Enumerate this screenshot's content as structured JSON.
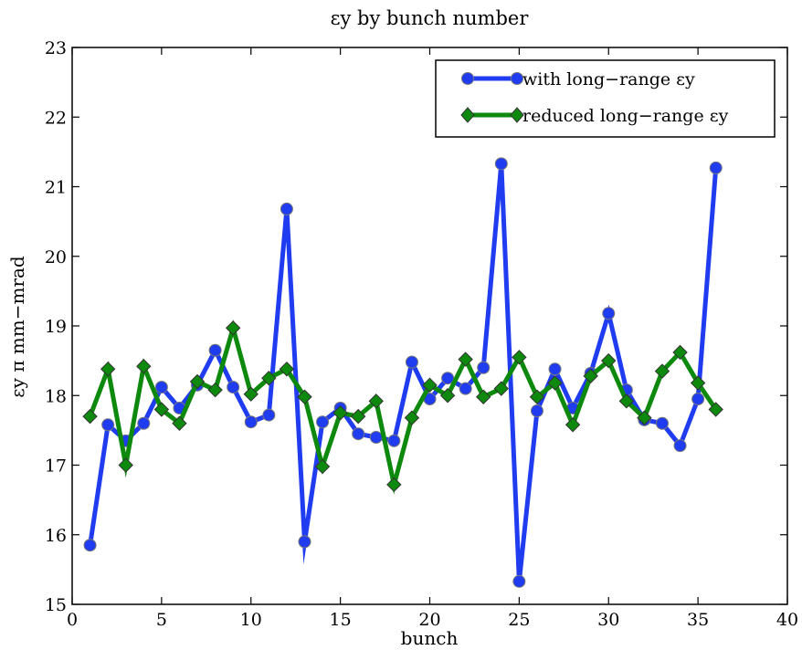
{
  "chart_data": {
    "type": "line",
    "title": "εy by bunch number",
    "xlabel": "bunch",
    "ylabel": "εy π mm−mrad",
    "xlim": [
      0,
      40
    ],
    "ylim": [
      15,
      23
    ],
    "xticks": [
      0,
      5,
      10,
      15,
      20,
      25,
      30,
      35,
      40
    ],
    "yticks": [
      15,
      16,
      17,
      18,
      19,
      20,
      21,
      22,
      23
    ],
    "grid": false,
    "legend_position": "top-right",
    "series": [
      {
        "name": "with long−range εy",
        "color": "#1f3cf0",
        "marker": "circle",
        "x": [
          1,
          2,
          3,
          4,
          5,
          6,
          7,
          8,
          9,
          10,
          11,
          12,
          13,
          14,
          15,
          16,
          17,
          18,
          19,
          20,
          21,
          22,
          23,
          24,
          25,
          26,
          27,
          28,
          29,
          30,
          31,
          32,
          33,
          34,
          35,
          36
        ],
        "y": [
          15.85,
          17.58,
          17.35,
          17.6,
          18.12,
          17.82,
          18.15,
          18.65,
          18.12,
          17.62,
          17.72,
          20.68,
          15.9,
          17.62,
          17.82,
          17.45,
          17.4,
          17.35,
          18.48,
          17.95,
          18.25,
          18.1,
          18.4,
          21.33,
          15.33,
          17.78,
          18.38,
          17.82,
          18.32,
          19.18,
          18.08,
          17.65,
          17.6,
          17.28,
          17.95,
          21.27
        ]
      },
      {
        "name": "reduced long−range  εy",
        "color": "#0d8a0d",
        "marker": "diamond",
        "x": [
          1,
          2,
          3,
          4,
          5,
          6,
          7,
          8,
          9,
          10,
          11,
          12,
          13,
          14,
          15,
          16,
          17,
          18,
          19,
          20,
          21,
          22,
          23,
          24,
          25,
          26,
          27,
          28,
          29,
          30,
          31,
          32,
          33,
          34,
          35,
          36
        ],
        "y": [
          17.7,
          18.38,
          17.0,
          18.42,
          17.8,
          17.6,
          18.2,
          18.08,
          18.97,
          18.02,
          18.25,
          18.38,
          17.98,
          16.98,
          17.75,
          17.7,
          17.92,
          16.72,
          17.68,
          18.15,
          18.0,
          18.52,
          17.98,
          18.1,
          18.55,
          17.98,
          18.18,
          17.58,
          18.28,
          18.5,
          17.92,
          17.68,
          18.35,
          18.62,
          18.18,
          17.8
        ]
      }
    ]
  }
}
